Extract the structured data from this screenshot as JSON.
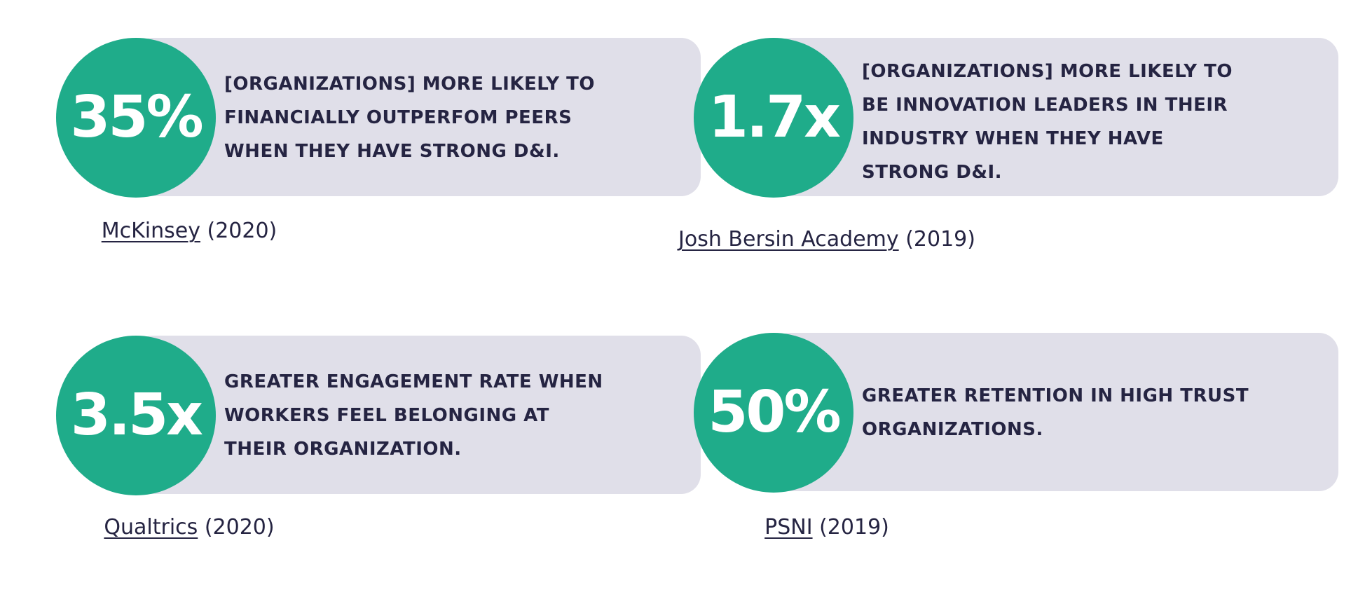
{
  "stats": [
    {
      "value": "35%",
      "text": "[Organizations] more likely to financially outperfom peers when they have strong D&I.",
      "source_name": "McKinsey",
      "source_year": " (2020)"
    },
    {
      "value": "1.7x",
      "text": "[Organizations] more likely to be innovation leaders in their industry when they have strong D&I.",
      "source_name": "Josh Bersin Academy",
      "source_year": " (2019)"
    },
    {
      "value": "3.5x",
      "text": "Greater engagement rate when workers feel belonging at their organization.",
      "source_name": "Qualtrics",
      "source_year": " (2020)"
    },
    {
      "value": "50%",
      "text": "Greater retention in high trust organizations.",
      "source_name": "PSNI",
      "source_year": " (2019)"
    }
  ],
  "colors": {
    "accent": "#1fac8a",
    "panel": "#e0dfe9",
    "text": "#252442"
  }
}
